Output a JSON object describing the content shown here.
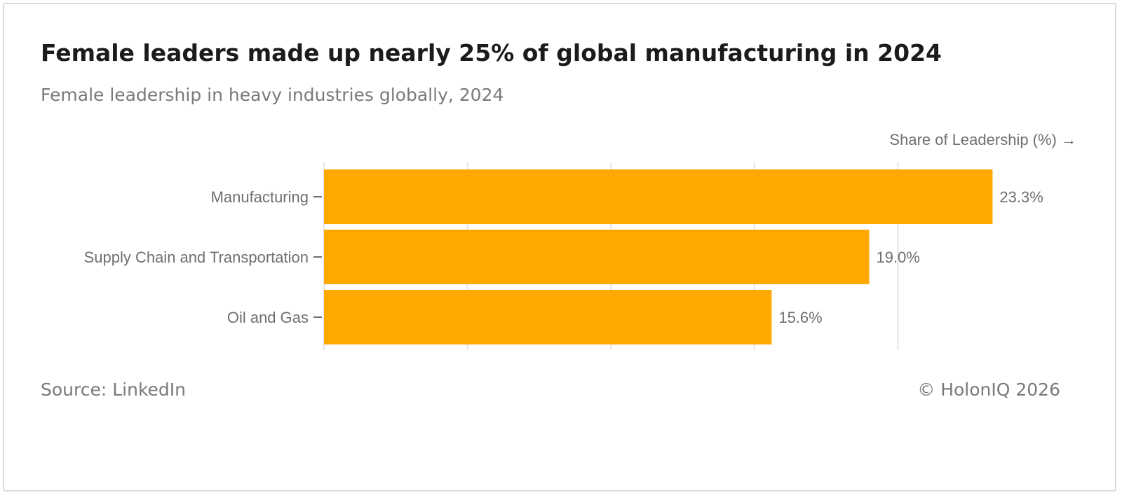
{
  "header": {
    "title": "Female leaders made up nearly 25% of global manufacturing in 2024",
    "subtitle": "Female leadership in heavy industries globally, 2024"
  },
  "footer": {
    "source": "Source: LinkedIn",
    "copyright": "© HolonIQ 2026"
  },
  "colors": {
    "bar": "#FFA800",
    "grid": "#e4e4e4",
    "label": "#6f6f6f",
    "axis": "#6f6f6f"
  },
  "chart_data": {
    "type": "bar",
    "orientation": "horizontal",
    "title": "Female leaders made up nearly 25% of global manufacturing in 2024",
    "subtitle": "Female leadership in heavy industries globally, 2024",
    "xlabel": "Share of Leadership (%) →",
    "ylabel": "",
    "categories": [
      "Manufacturing",
      "Supply Chain and Transportation",
      "Oil and Gas"
    ],
    "values": [
      23.3,
      19.0,
      15.6
    ],
    "value_labels": [
      "23.3%",
      "19.0%",
      "15.6%"
    ],
    "xlim": [
      0,
      25
    ],
    "gridlines_at": [
      0,
      5,
      10,
      15,
      20
    ],
    "grid": true,
    "legend": "none"
  }
}
